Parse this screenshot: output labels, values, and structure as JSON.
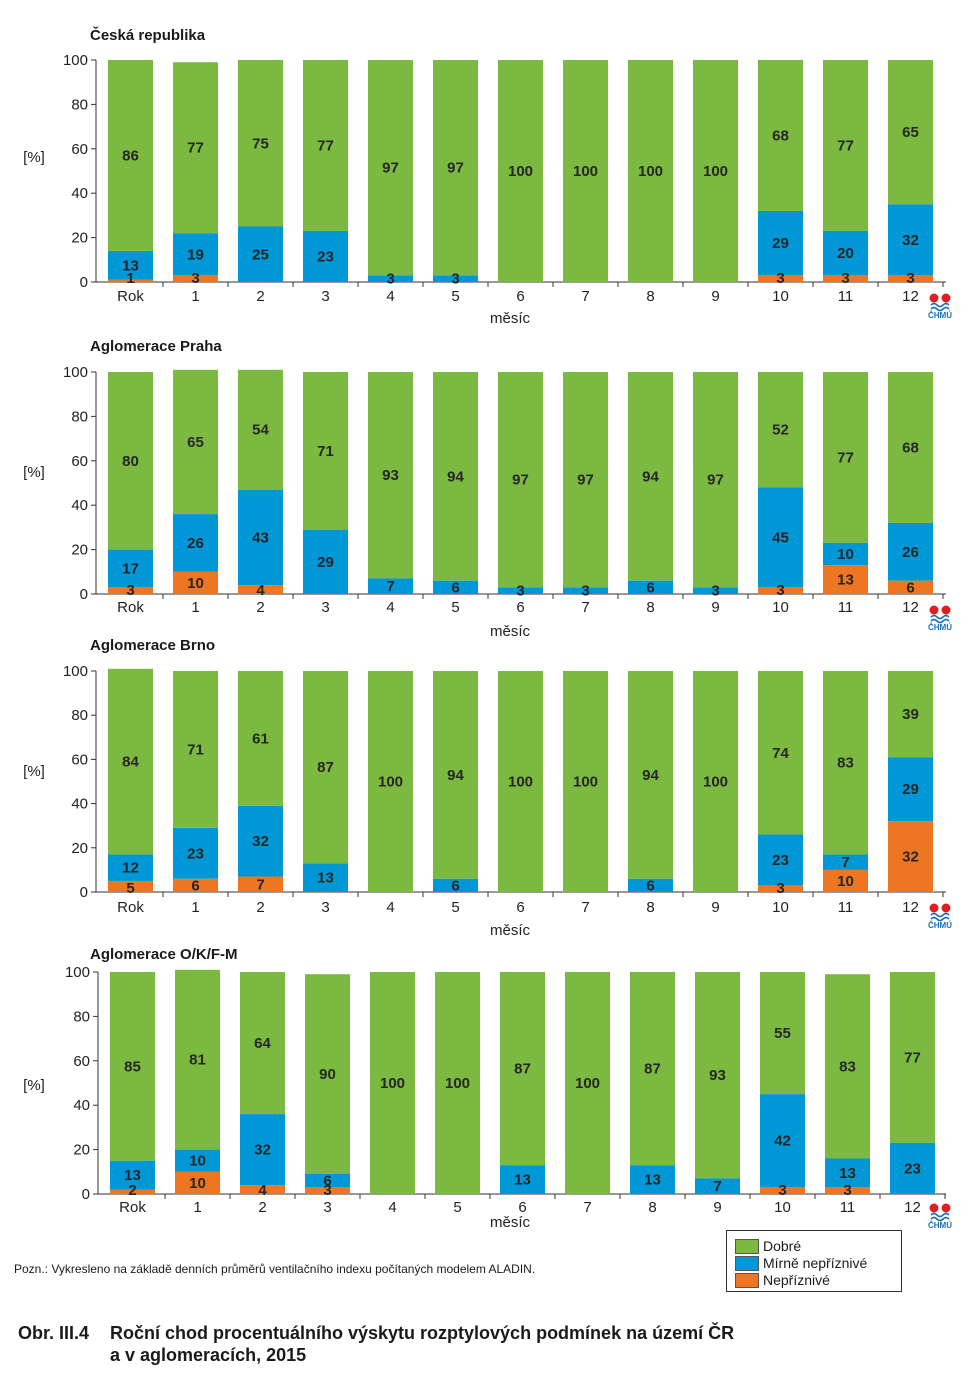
{
  "chart_data": [
    {
      "type": "bar",
      "stacked": true,
      "title": "Česká republika",
      "ylabel": "[%]",
      "xlabel": "měsíc",
      "ylim": [
        0,
        100
      ],
      "yticks": [
        0,
        20,
        40,
        60,
        80,
        100
      ],
      "categories": [
        "Rok",
        "1",
        "2",
        "3",
        "4",
        "5",
        "6",
        "7",
        "8",
        "9",
        "10",
        "11",
        "12"
      ],
      "series": [
        {
          "name": "Nepříznivé",
          "values": [
            1,
            3,
            0,
            0,
            0,
            0,
            0,
            0,
            0,
            0,
            3,
            3,
            3
          ]
        },
        {
          "name": "Mírně nepříznivé",
          "values": [
            13,
            19,
            25,
            23,
            3,
            3,
            0,
            0,
            0,
            0,
            29,
            20,
            32
          ]
        },
        {
          "name": "Dobré",
          "values": [
            86,
            77,
            75,
            77,
            97,
            97,
            100,
            100,
            100,
            100,
            68,
            77,
            65
          ]
        }
      ]
    },
    {
      "type": "bar",
      "stacked": true,
      "title": "Aglomerace Praha",
      "ylabel": "[%]",
      "xlabel": "měsíc",
      "ylim": [
        0,
        100
      ],
      "yticks": [
        0,
        20,
        40,
        60,
        80,
        100
      ],
      "categories": [
        "Rok",
        "1",
        "2",
        "3",
        "4",
        "5",
        "6",
        "7",
        "8",
        "9",
        "10",
        "11",
        "12"
      ],
      "series": [
        {
          "name": "Nepříznivé",
          "values": [
            3,
            10,
            4,
            0,
            0,
            0,
            0,
            0,
            0,
            0,
            3,
            13,
            6
          ]
        },
        {
          "name": "Mírně nepříznivé",
          "values": [
            17,
            26,
            43,
            29,
            7,
            6,
            3,
            3,
            6,
            3,
            45,
            10,
            26
          ]
        },
        {
          "name": "Dobré",
          "values": [
            80,
            65,
            54,
            71,
            93,
            94,
            97,
            97,
            94,
            97,
            52,
            77,
            68
          ]
        }
      ]
    },
    {
      "type": "bar",
      "stacked": true,
      "title": "Aglomerace Brno",
      "ylabel": "[%]",
      "xlabel": "měsíc",
      "ylim": [
        0,
        100
      ],
      "yticks": [
        0,
        20,
        40,
        60,
        80,
        100
      ],
      "categories": [
        "Rok",
        "1",
        "2",
        "3",
        "4",
        "5",
        "6",
        "7",
        "8",
        "9",
        "10",
        "11",
        "12"
      ],
      "series": [
        {
          "name": "Nepříznivé",
          "values": [
            5,
            6,
            7,
            0,
            0,
            0,
            0,
            0,
            0,
            0,
            3,
            10,
            32
          ]
        },
        {
          "name": "Mírně nepříznivé",
          "values": [
            12,
            23,
            32,
            13,
            0,
            6,
            0,
            0,
            6,
            0,
            23,
            7,
            29
          ]
        },
        {
          "name": "Dobré",
          "values": [
            84,
            71,
            61,
            87,
            100,
            94,
            100,
            100,
            94,
            100,
            74,
            83,
            39
          ]
        }
      ]
    },
    {
      "type": "bar",
      "stacked": true,
      "title": "Aglomerace O/K/F-M",
      "ylabel": "[%]",
      "xlabel": "měsíc",
      "ylim": [
        0,
        100
      ],
      "yticks": [
        0,
        20,
        40,
        60,
        80,
        100
      ],
      "categories": [
        "Rok",
        "1",
        "2",
        "3",
        "4",
        "5",
        "6",
        "7",
        "8",
        "9",
        "10",
        "11",
        "12"
      ],
      "series": [
        {
          "name": "Nepříznivé",
          "values": [
            2,
            10,
            4,
            3,
            0,
            0,
            0,
            0,
            0,
            0,
            3,
            3,
            0
          ]
        },
        {
          "name": "Mírně nepříznivé",
          "values": [
            13,
            10,
            32,
            6,
            0,
            0,
            13,
            0,
            13,
            7,
            42,
            13,
            23
          ]
        },
        {
          "name": "Dobré",
          "values": [
            85,
            81,
            64,
            90,
            100,
            100,
            87,
            100,
            87,
            93,
            55,
            83,
            77
          ]
        }
      ]
    }
  ],
  "colors": {
    "Dobré": "#7cb940",
    "Mírně nepříznivé": "#0097d6",
    "Nepříznivé": "#ee7623"
  },
  "logo_text": "ČHMÚ",
  "legend": {
    "items": [
      {
        "label": "Dobré",
        "color": "#7cb940"
      },
      {
        "label": "Mírně nepříznivé",
        "color": "#0097d6"
      },
      {
        "label": "Nepříznivé",
        "color": "#ee7623"
      }
    ]
  },
  "note": "Pozn.: Vykresleno na základě denních průměrů ventilačního indexu počítaných modelem ALADIN.",
  "caption": {
    "number": "Obr. III.4",
    "line1": "Roční chod procentuálního výskytu rozptylových podmínek na území ČR",
    "line2": "a v aglomeracích, 2015"
  }
}
